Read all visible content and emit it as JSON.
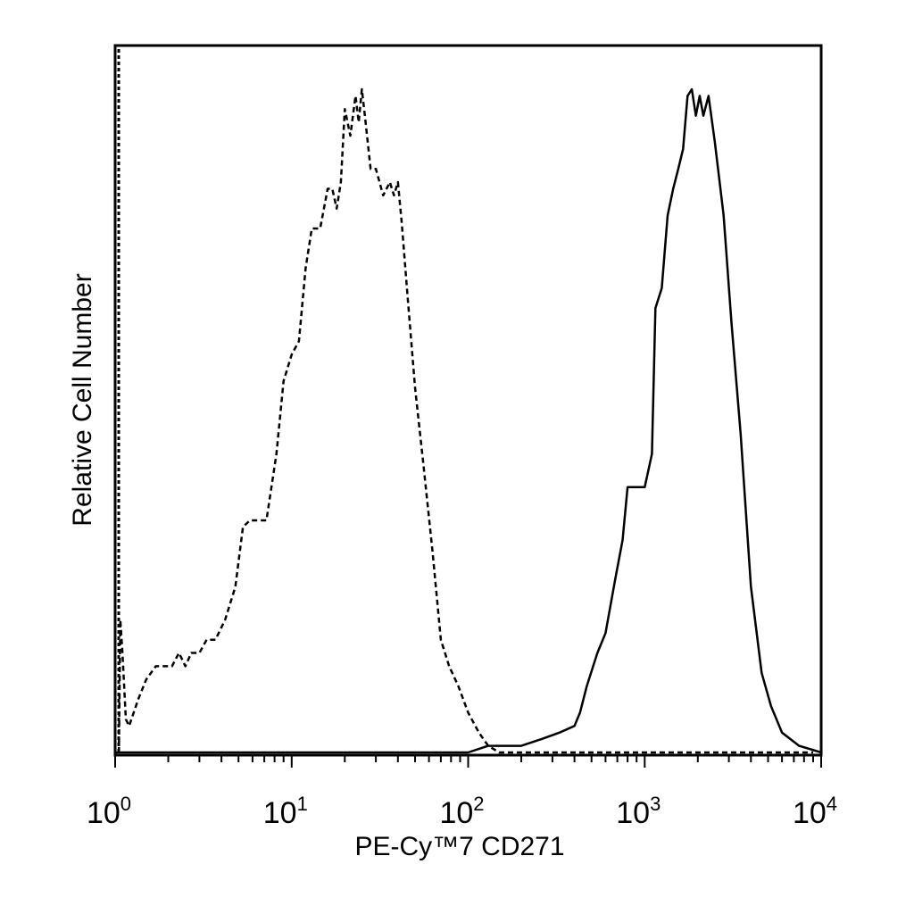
{
  "chart_data": {
    "type": "line",
    "title": "",
    "xlabel": "PE-Cy™7 CD271",
    "ylabel": "Relative Cell Number",
    "x_scale": "log10",
    "xlim": [
      1,
      10000
    ],
    "ylim": [
      0,
      1
    ],
    "grid": false,
    "legend": "none",
    "x_ticks": [
      {
        "base": "10",
        "exp": "0"
      },
      {
        "base": "10",
        "exp": "1"
      },
      {
        "base": "10",
        "exp": "2"
      },
      {
        "base": "10",
        "exp": "3"
      },
      {
        "base": "10",
        "exp": "4"
      }
    ],
    "series": [
      {
        "style": "dashed",
        "x": [
          1.05,
          1.07,
          1.1,
          1.15,
          1.2,
          1.35,
          1.5,
          1.7,
          1.9,
          2.1,
          2.3,
          2.5,
          2.7,
          3.0,
          3.3,
          3.7,
          4.2,
          4.8,
          5.3,
          5.8,
          6.3,
          7.2,
          8.2,
          9.0,
          10.0,
          11.0,
          12.0,
          13.0,
          14.5,
          16.0,
          17.0,
          18.0,
          19.0,
          20.0,
          21.5,
          23.0,
          24.0,
          25.0,
          26.0,
          28.0,
          30.0,
          33.0,
          36.0,
          38.0,
          40.0,
          42.0,
          45.0,
          50.0,
          56.0,
          63.0,
          70.0,
          78.0,
          88.0,
          100.0,
          115.0,
          130.0,
          150.0,
          180.0,
          220.0,
          300.0,
          500.0,
          1000.0,
          3000.0,
          9000.0
        ],
        "y": [
          0.0,
          0.2,
          0.15,
          0.05,
          0.04,
          0.08,
          0.11,
          0.13,
          0.13,
          0.13,
          0.15,
          0.13,
          0.15,
          0.15,
          0.17,
          0.17,
          0.2,
          0.25,
          0.34,
          0.35,
          0.35,
          0.35,
          0.45,
          0.56,
          0.6,
          0.62,
          0.73,
          0.79,
          0.79,
          0.85,
          0.85,
          0.82,
          0.86,
          0.97,
          0.93,
          0.99,
          0.95,
          1.0,
          0.96,
          0.88,
          0.88,
          0.84,
          0.86,
          0.84,
          0.86,
          0.8,
          0.7,
          0.55,
          0.43,
          0.3,
          0.17,
          0.13,
          0.1,
          0.06,
          0.03,
          0.01,
          0.0,
          0.0,
          0.0,
          0.0,
          0.0,
          0.0,
          0.0,
          0.0
        ]
      },
      {
        "style": "solid",
        "x": [
          1.0,
          100.0,
          130.0,
          170.0,
          200.0,
          260.0,
          330.0,
          400.0,
          430.0,
          470.0,
          540.0,
          600.0,
          680.0,
          750.0,
          800.0,
          850.0,
          900.0,
          1000.0,
          1100.0,
          1150.0,
          1250.0,
          1350.0,
          1450.0,
          1550.0,
          1650.0,
          1750.0,
          1850.0,
          1950.0,
          2050.0,
          2150.0,
          2300.0,
          2500.0,
          2800.0,
          3100.0,
          3500.0,
          4000.0,
          4600.0,
          5200.0,
          6000.0,
          7500.0,
          10000.0
        ],
        "y": [
          0.0,
          0.0,
          0.01,
          0.01,
          0.01,
          0.02,
          0.03,
          0.04,
          0.06,
          0.1,
          0.15,
          0.18,
          0.26,
          0.32,
          0.4,
          0.4,
          0.4,
          0.4,
          0.45,
          0.67,
          0.7,
          0.81,
          0.85,
          0.88,
          0.91,
          0.99,
          1.0,
          0.96,
          0.99,
          0.96,
          0.99,
          0.92,
          0.81,
          0.65,
          0.48,
          0.25,
          0.12,
          0.07,
          0.03,
          0.01,
          0.0
        ]
      }
    ]
  }
}
